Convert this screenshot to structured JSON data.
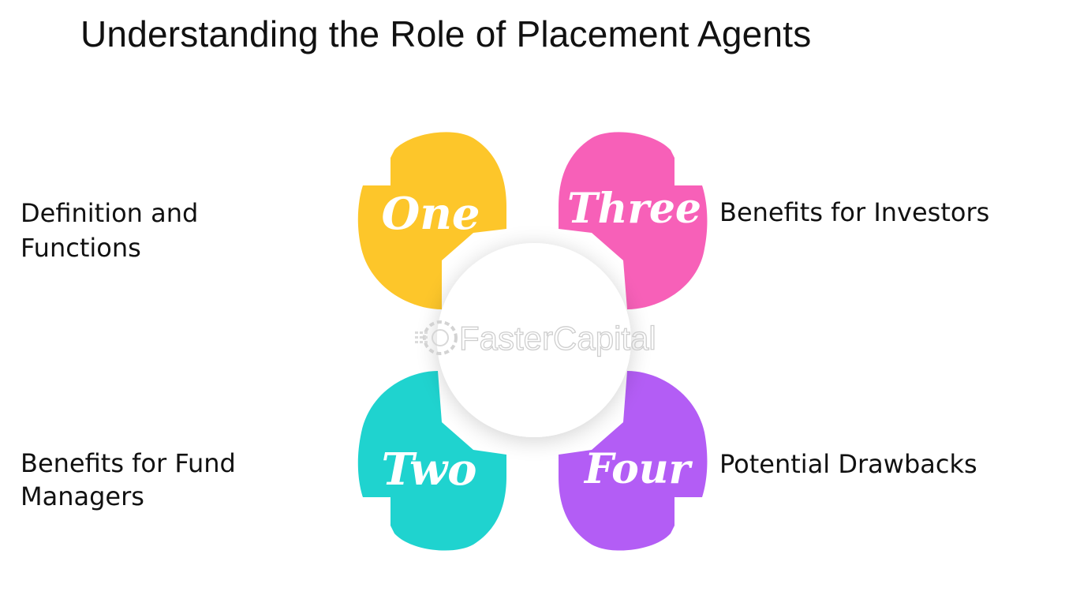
{
  "title": "Understanding the Role of Placement Agents",
  "petals": {
    "one": {
      "word": "One",
      "color": "#fdc62a",
      "label": "Definition and Functions"
    },
    "two": {
      "word": "Two",
      "color": "#1fd3cf",
      "label": "Benefits for Fund Managers"
    },
    "three": {
      "word": "Three",
      "color": "#f760b8",
      "label": "Benefits for Investors"
    },
    "four": {
      "word": "Four",
      "color": "#b35df5",
      "label": "Potential Drawbacks"
    }
  },
  "watermark": "FasterCapital"
}
